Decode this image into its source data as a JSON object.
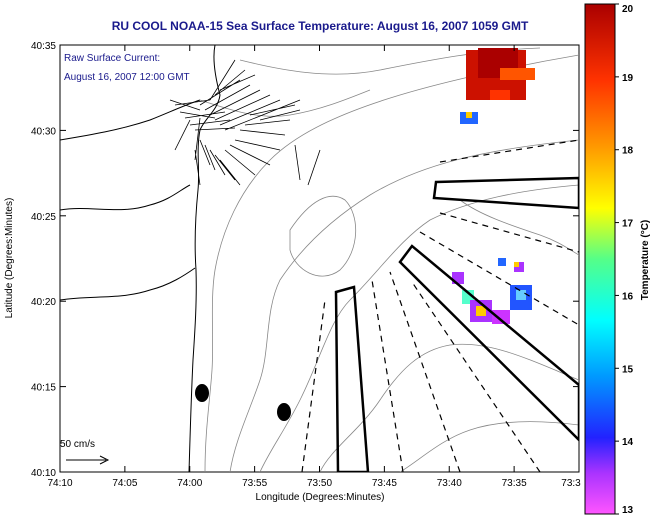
{
  "title": "RU COOL  NOAA-15  Sea Surface Temperature:  August 16, 2007 1059 GMT",
  "annotation": {
    "line1": "Raw Surface Current:",
    "line2": "August 16, 2007 12:00 GMT"
  },
  "scale": {
    "label": "50 cm/s"
  },
  "axes": {
    "xlabel": "Longitude (Degrees:Minutes)",
    "ylabel": "Latitude (Degrees:Minutes)",
    "xticks": [
      "74:10",
      "74:05",
      "74:00",
      "73:55",
      "73:50",
      "73:45",
      "73:40",
      "73:35",
      "73:3"
    ],
    "yticks": [
      "40:35",
      "40:30",
      "40:25",
      "40:20",
      "40:15",
      "40:10"
    ]
  },
  "colorbar": {
    "label": "Temperature (°C)",
    "ticks": [
      "20",
      "19",
      "18",
      "17",
      "16",
      "15",
      "14",
      "13"
    ],
    "colors": [
      "#ff55ff",
      "#aa33ff",
      "#2222ff",
      "#0099ff",
      "#00ffff",
      "#55ff88",
      "#ffff00",
      "#ff9900",
      "#ff3300",
      "#aa0000"
    ]
  }
}
